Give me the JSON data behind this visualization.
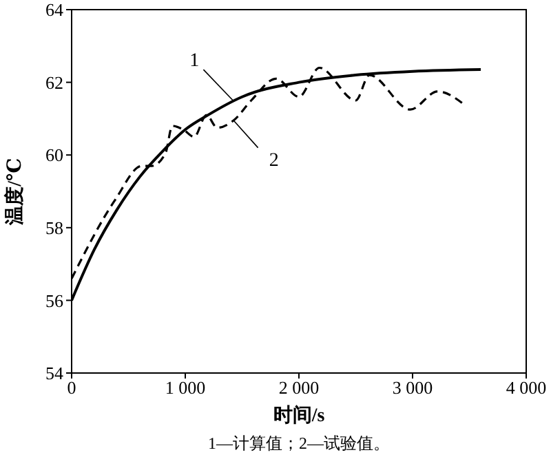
{
  "chart_data": {
    "type": "line",
    "xlabel": "时间/s",
    "ylabel": "温度/℃",
    "annotations": [
      "1—计算值；2—试验值。"
    ],
    "xlim": [
      0,
      4000
    ],
    "ylim": [
      54,
      64
    ],
    "xticks": [
      0,
      {
        "value": 1000,
        "label": "1 000"
      },
      {
        "value": 2000,
        "label": "2 000"
      },
      {
        "value": 3000,
        "label": "3 000"
      },
      {
        "value": 4000,
        "label": "4 000"
      }
    ],
    "yticks": [
      54,
      56,
      58,
      60,
      62,
      64
    ],
    "grid": false,
    "legend": false,
    "marker": "none",
    "series": [
      {
        "name": "1",
        "color": "#000000",
        "line_style": "solid",
        "x": [
          0,
          200,
          400,
          600,
          800,
          1000,
          1200,
          1500,
          2000,
          2500,
          3000,
          3600
        ],
        "values": [
          56,
          57.4,
          58.5,
          59.4,
          60.1,
          60.7,
          61.1,
          61.6,
          62.0,
          62.2,
          62.3,
          62.35
        ]
      },
      {
        "name": "2",
        "color": "#000000",
        "line_style": "dashed",
        "x": [
          0,
          380,
          620,
          705,
          826,
          886,
          982,
          1078,
          1186,
          1281,
          1425,
          1580,
          1800,
          2000,
          2180,
          2500,
          2620,
          2980,
          3220,
          3470
        ],
        "values": [
          56.6,
          58.75,
          59.7,
          59.7,
          60.05,
          60.8,
          60.7,
          60.5,
          61.1,
          60.75,
          60.95,
          61.5,
          62.1,
          61.6,
          62.4,
          61.5,
          62.2,
          61.25,
          61.75,
          61.35
        ]
      }
    ]
  }
}
